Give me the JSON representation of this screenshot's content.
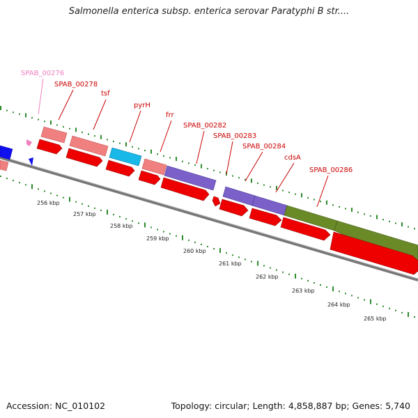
{
  "title": "Salmonella enterica subsp. enterica serovar Paratyphi B str....",
  "footer": {
    "accession": "Accession: NC_010102",
    "topology": "Topology: circular; Length: 4,858,887 bp; Genes: 5,740"
  },
  "colors": {
    "gene_label_red": "#cc0000",
    "gene_label_pink": "#f080c0",
    "backbone": "#777777",
    "dots_green": "#2a8a2a",
    "cds_red": "#ee0000",
    "pink_gene": "#f08080",
    "cyan_gene": "#18b8e8",
    "purple_gene": "#7a60c8",
    "olive_gene": "#6a8a28",
    "blue_gene": "#1010ee"
  },
  "gene_labels": [
    {
      "text": "SPAB_00276",
      "color": "#f080c0"
    },
    {
      "text": "SPAB_00278",
      "color": "#cc0000"
    },
    {
      "text": "tsf",
      "color": "#cc0000"
    },
    {
      "text": "pyrH",
      "color": "#cc0000"
    },
    {
      "text": "frr",
      "color": "#cc0000"
    },
    {
      "text": "SPAB_00282",
      "color": "#cc0000"
    },
    {
      "text": "SPAB_00283",
      "color": "#cc0000"
    },
    {
      "text": "SPAB_00284",
      "color": "#cc0000"
    },
    {
      "text": "cdsA",
      "color": "#cc0000"
    },
    {
      "text": "SPAB_00286",
      "color": "#cc0000"
    }
  ],
  "scale_labels": [
    "256 kbp",
    "257 kbp",
    "258 kbp",
    "259 kbp",
    "260 kbp",
    "261 kbp",
    "262 kbp",
    "263 kbp",
    "264 kbp",
    "265 kbp"
  ]
}
